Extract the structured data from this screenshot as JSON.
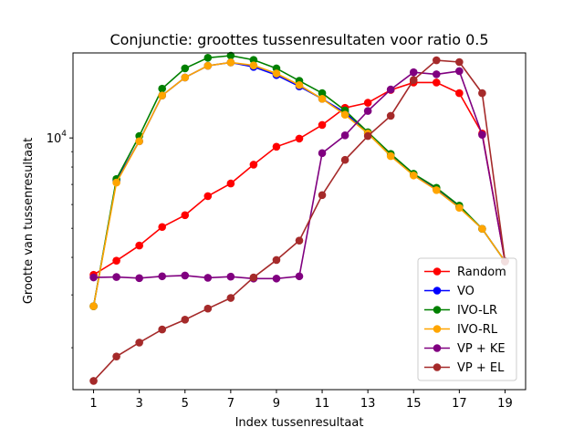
{
  "chart_data": {
    "type": "line",
    "title": "Conjunctie: groottes tussenresultaten voor ratio 0.5",
    "xlabel": "Index tussenresultaat",
    "ylabel": "Grootte van tussenresultaat",
    "yscale": "log",
    "xlim": [
      0.1,
      19.9
    ],
    "ylim": [
      1450,
      19200
    ],
    "xticks": [
      1,
      3,
      5,
      7,
      9,
      11,
      13,
      15,
      17,
      19
    ],
    "yticks": [
      {
        "value": 10000,
        "label": "10^4"
      }
    ],
    "grid": false,
    "legend_position": "bottom-right",
    "x": [
      1,
      2,
      3,
      4,
      5,
      6,
      7,
      8,
      9,
      10,
      11,
      12,
      13,
      14,
      15,
      16,
      17,
      18,
      19
    ],
    "series": [
      {
        "name": "Random",
        "color": "#ff0000",
        "values": [
          3500,
          3900,
          4380,
          5050,
          5530,
          6400,
          7050,
          8150,
          9350,
          9950,
          11050,
          12600,
          13100,
          14450,
          15300,
          15300,
          14100,
          10350,
          3880
        ]
      },
      {
        "name": "VO",
        "color": "#0000ff",
        "values": [
          2750,
          7200,
          9750,
          13850,
          15900,
          17400,
          17850,
          17250,
          16200,
          14850,
          13500,
          12150,
          10350,
          8750,
          7550,
          6750,
          5900,
          4980,
          3880
        ]
      },
      {
        "name": "IVO-LR",
        "color": "#008000",
        "values": [
          2750,
          7300,
          10150,
          14600,
          17050,
          18500,
          18800,
          18200,
          17050,
          15500,
          14100,
          12350,
          10450,
          8850,
          7600,
          6820,
          5950,
          4980,
          3880
        ]
      },
      {
        "name": "IVO-RL",
        "color": "#ffa500",
        "values": [
          2750,
          7100,
          9750,
          13850,
          15900,
          17400,
          17850,
          17450,
          16400,
          15000,
          13500,
          11950,
          10350,
          8700,
          7500,
          6700,
          5850,
          4980,
          3880
        ]
      },
      {
        "name": "VP + KE",
        "color": "#800080",
        "values": [
          3430,
          3440,
          3410,
          3460,
          3480,
          3420,
          3450,
          3400,
          3400,
          3460,
          8900,
          10200,
          12300,
          14500,
          16550,
          16300,
          16700,
          10250,
          3880
        ]
      },
      {
        "name": "VP + EL",
        "color": "#a52a2a",
        "values": [
          1550,
          1870,
          2080,
          2300,
          2480,
          2700,
          2930,
          3430,
          3920,
          4550,
          6450,
          8450,
          10150,
          11850,
          15600,
          18150,
          17900,
          14100,
          3880
        ]
      }
    ]
  }
}
